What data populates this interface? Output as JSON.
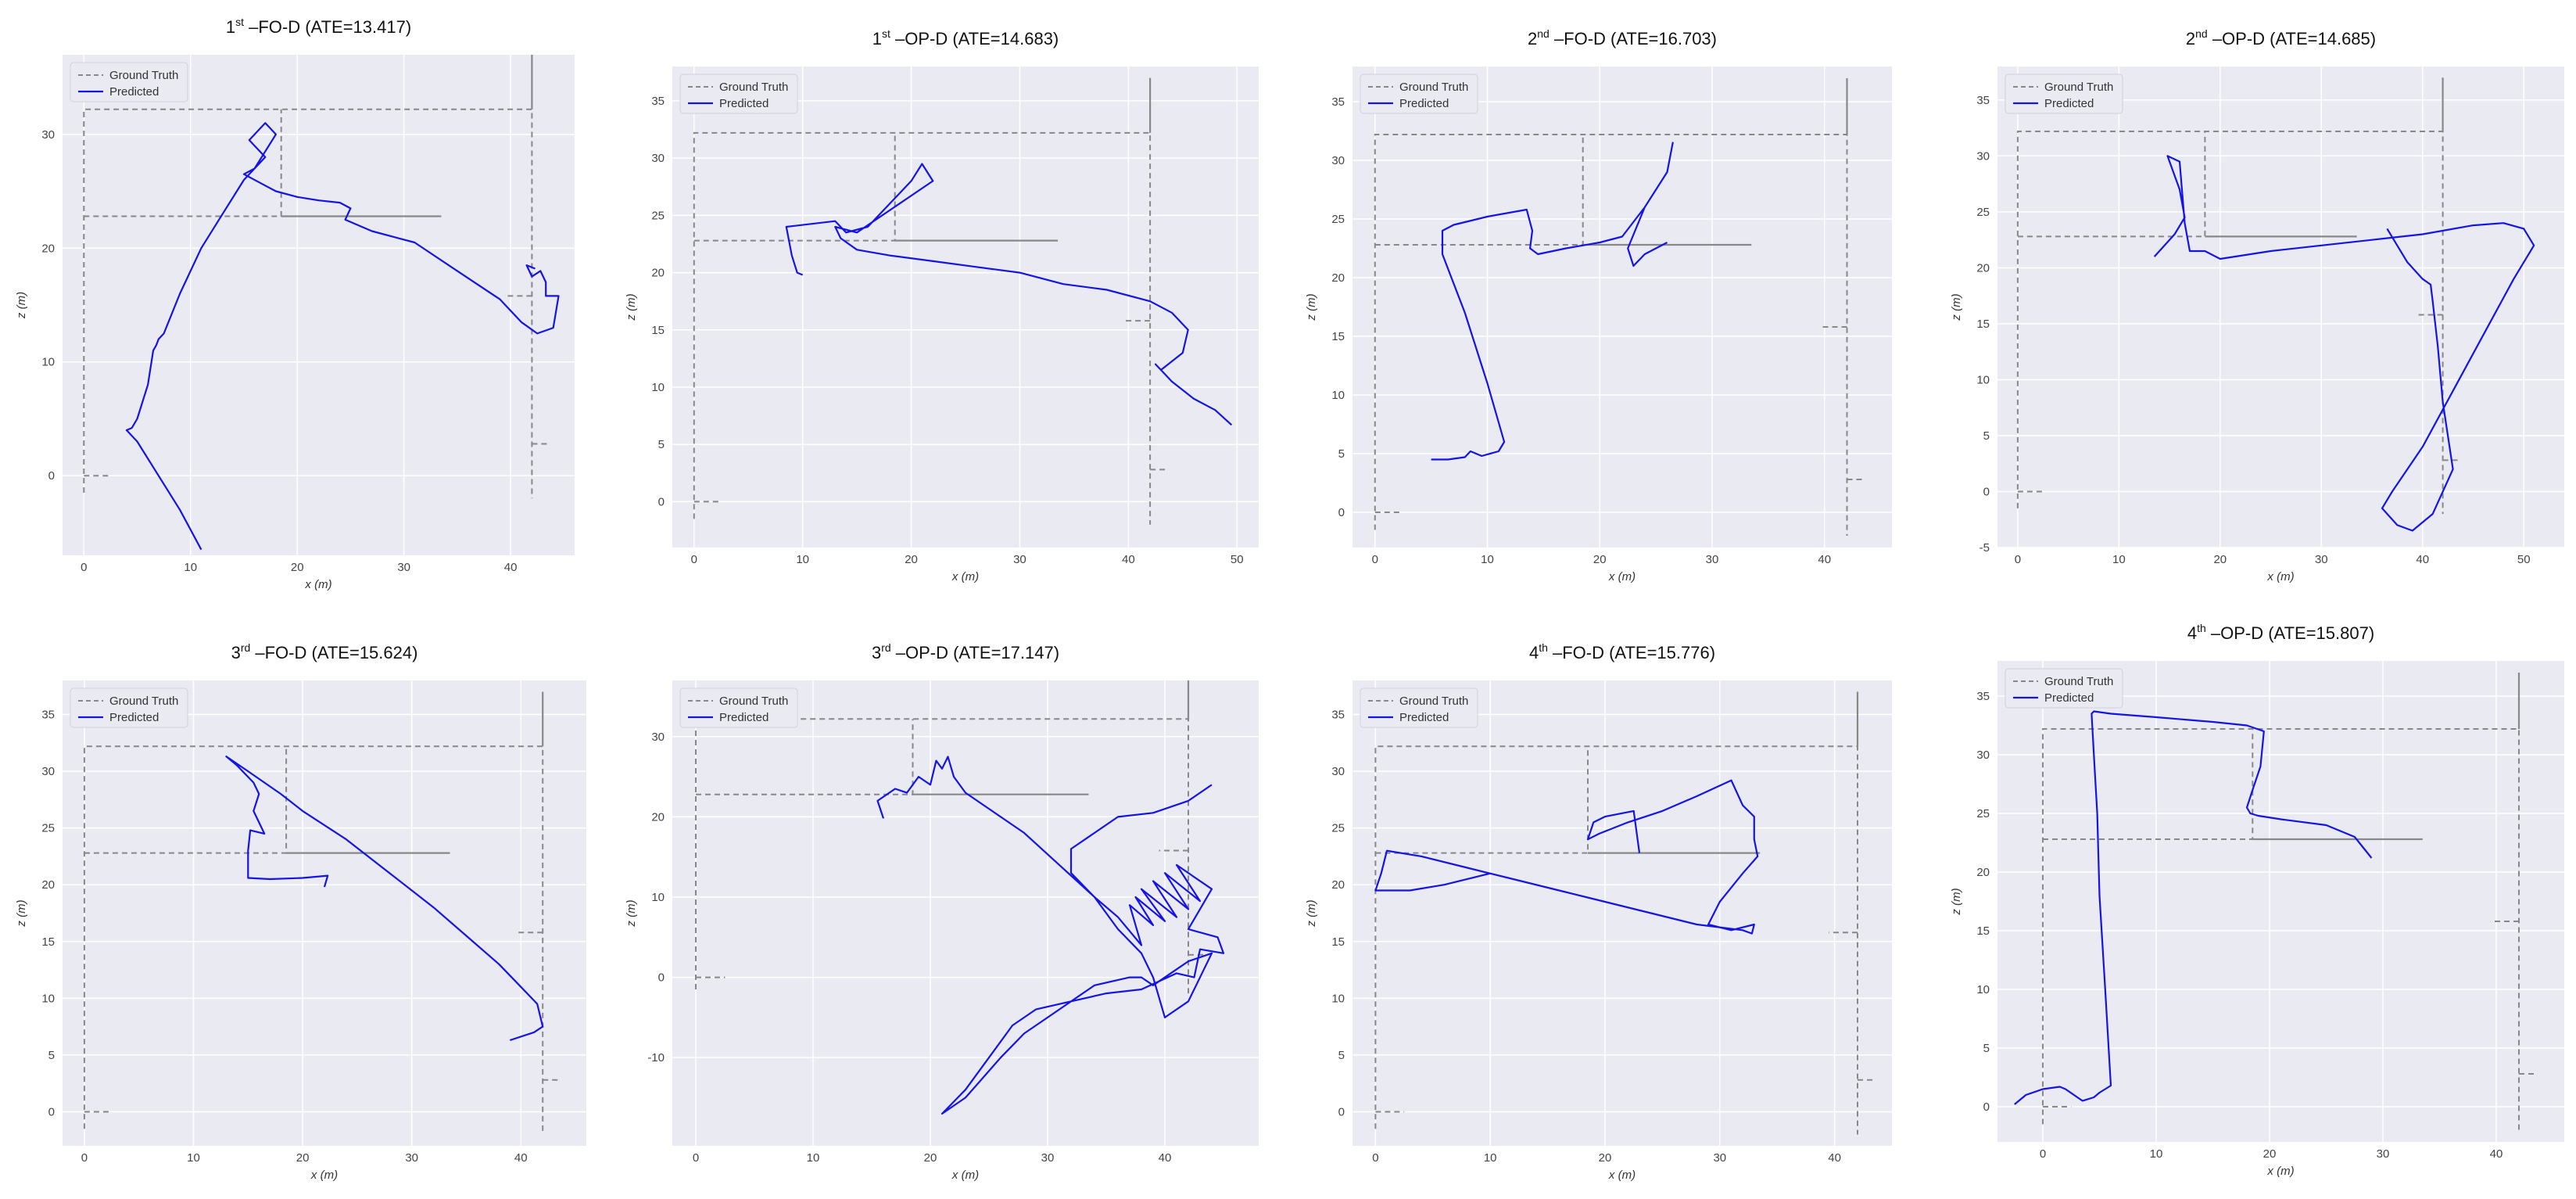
{
  "figure": {
    "legend_gt": "Ground Truth",
    "legend_pred": "Predicted",
    "gt_color": "#888888",
    "pred_color": "#1414e6",
    "bg_color": "#eaeaf2"
  },
  "ground_truth": {
    "dashed_lines": [
      [
        [
          0,
          -1.5
        ],
        [
          0,
          32.2
        ],
        [
          42,
          32.2
        ],
        [
          42,
          -2
        ]
      ],
      [
        [
          0,
          22.8
        ],
        [
          18.5,
          22.8
        ],
        [
          18.5,
          32.2
        ]
      ],
      [
        [
          0,
          0
        ],
        [
          2.5,
          0
        ]
      ],
      [
        [
          42,
          15.8
        ],
        [
          39.5,
          15.8
        ]
      ],
      [
        [
          42,
          2.8
        ],
        [
          43.5,
          2.8
        ]
      ]
    ],
    "solid_lines": [
      [
        [
          18.5,
          22.8
        ],
        [
          33.5,
          22.8
        ]
      ],
      [
        [
          42,
          32.2
        ],
        [
          42,
          37
        ]
      ]
    ]
  },
  "chart_data": [
    {
      "type": "line",
      "title_ord": "1",
      "title_sup": "st",
      "title_rest": " –FO-D (ATE=13.417)",
      "xlabel": "x (m)",
      "ylabel": "z (m)",
      "xlim": [
        -2,
        46
      ],
      "ylim": [
        -7,
        37
      ],
      "xticks": [
        0,
        10,
        20,
        30,
        40
      ],
      "yticks": [
        0,
        10,
        20,
        30
      ],
      "series": [
        {
          "x": [
            11,
            9,
            7,
            5,
            4,
            4.5,
            5,
            6,
            6.5,
            6.8,
            7,
            7.5,
            9,
            11,
            13,
            15,
            17,
            15.5,
            17,
            18,
            16,
            15,
            17,
            18,
            20,
            22,
            24,
            25,
            24.5,
            27,
            31,
            35,
            39,
            41,
            42.5,
            44,
            44.5,
            43.3,
            43.3,
            42.8,
            42,
            41.5,
            42.3
          ],
          "y": [
            -6.5,
            -3,
            0,
            3,
            4,
            4.2,
            5,
            8,
            11,
            11.5,
            12,
            12.5,
            16,
            20,
            23,
            26,
            28,
            29.5,
            31,
            30,
            27,
            26.5,
            25.5,
            25,
            24.5,
            24.2,
            24,
            23.5,
            22.5,
            21.5,
            20.5,
            18,
            15.5,
            13.5,
            12.5,
            13,
            15.8,
            15.8,
            17,
            18,
            17.5,
            18.5,
            18.2
          ]
        }
      ]
    },
    {
      "type": "line",
      "title_ord": "1",
      "title_sup": "st",
      "title_rest": " –OP-D (ATE=14.683)",
      "xlabel": "x (m)",
      "ylabel": "z (m)",
      "xlim": [
        -2,
        52
      ],
      "ylim": [
        -4,
        38
      ],
      "xticks": [
        0,
        10,
        20,
        30,
        40,
        50
      ],
      "yticks": [
        0,
        5,
        10,
        15,
        20,
        25,
        30,
        35
      ],
      "series": [
        {
          "x": [
            10,
            9.5,
            9,
            8.5,
            13,
            14,
            16,
            20,
            21,
            22,
            15,
            13,
            13.5,
            15,
            18,
            22,
            26,
            30,
            34,
            38,
            42,
            44,
            45.5,
            45,
            43,
            42.5,
            44,
            46,
            48,
            49.5
          ],
          "y": [
            19.8,
            20,
            21.5,
            24,
            24.5,
            23.5,
            24,
            28,
            29.5,
            28,
            23.5,
            24,
            23,
            22,
            21.5,
            21,
            20.5,
            20,
            19,
            18.5,
            17.5,
            16.5,
            15,
            13,
            11.5,
            12,
            10.5,
            9,
            8,
            6.7
          ]
        }
      ]
    },
    {
      "type": "line",
      "title_ord": "2",
      "title_sup": "nd",
      "title_rest": " –FO-D (ATE=16.703)",
      "xlabel": "x (m)",
      "ylabel": "z (m)",
      "xlim": [
        -2,
        46
      ],
      "ylim": [
        -3,
        38
      ],
      "xticks": [
        0,
        10,
        20,
        30,
        40
      ],
      "yticks": [
        0,
        5,
        10,
        15,
        20,
        25,
        30,
        35
      ],
      "series": [
        {
          "x": [
            5,
            6.5,
            8,
            8.5,
            9.5,
            11,
            11.5,
            10,
            8,
            6,
            6,
            7,
            10,
            13.5,
            14,
            13.8,
            14.5,
            17,
            20,
            22,
            24,
            26,
            26.5,
            26,
            24,
            22.5,
            23,
            24,
            26
          ],
          "y": [
            4.5,
            4.5,
            4.7,
            5.2,
            4.8,
            5.2,
            6,
            11,
            17,
            22,
            24,
            24.5,
            25.2,
            25.8,
            24,
            22.5,
            22,
            22.5,
            23,
            23.5,
            26,
            29,
            31.5,
            29,
            26,
            22.5,
            21,
            22,
            23
          ]
        }
      ]
    },
    {
      "type": "line",
      "title_ord": "2",
      "title_sup": "nd",
      "title_rest": " –OP-D (ATE=14.685)",
      "xlabel": "x (m)",
      "ylabel": "z (m)",
      "xlim": [
        -2,
        54
      ],
      "ylim": [
        -5,
        38
      ],
      "xticks": [
        0,
        10,
        20,
        30,
        40,
        50
      ],
      "yticks": [
        -5,
        0,
        5,
        10,
        15,
        20,
        25,
        30,
        35
      ],
      "series": [
        {
          "x": [
            13.5,
            15.5,
            16.5,
            16,
            15,
            14.8,
            16,
            16.5,
            17,
            18.5,
            20,
            25,
            30,
            35,
            40,
            45,
            48,
            50,
            51,
            49,
            46,
            43,
            40,
            37,
            36,
            37.5,
            39,
            41,
            43,
            42,
            41.5,
            41,
            40.8,
            40,
            38.5,
            36.5
          ],
          "y": [
            21,
            23,
            24.5,
            27,
            29.5,
            30,
            29.5,
            24,
            21.5,
            21.5,
            20.8,
            21.5,
            22,
            22.5,
            23,
            23.8,
            24,
            23.5,
            22,
            19,
            14,
            9,
            4,
            0,
            -1.5,
            -3,
            -3.5,
            -2,
            2,
            8,
            13,
            17,
            18.5,
            19,
            20.5,
            23.5
          ]
        }
      ]
    },
    {
      "type": "line",
      "title_ord": "3",
      "title_sup": "rd",
      "title_rest": " –FO-D (ATE=15.624)",
      "xlabel": "x (m)",
      "ylabel": "z (m)",
      "xlim": [
        -2,
        46
      ],
      "ylim": [
        -3,
        38
      ],
      "xticks": [
        0,
        10,
        20,
        30,
        40
      ],
      "yticks": [
        0,
        5,
        10,
        15,
        20,
        25,
        30,
        35
      ],
      "series": [
        {
          "x": [
            22,
            22.3,
            20,
            17,
            15,
            15,
            15.2,
            16.5,
            15.5,
            16,
            15.5,
            14,
            13,
            15,
            18,
            20,
            24,
            28,
            32,
            35,
            38,
            40,
            41.5,
            42,
            41.2,
            39
          ],
          "y": [
            19.8,
            20.8,
            20.6,
            20.5,
            20.6,
            23,
            24.8,
            24.5,
            26.5,
            28,
            29,
            30.5,
            31.3,
            30,
            28,
            26.5,
            24,
            21,
            18,
            15.5,
            13,
            11,
            9.5,
            7.5,
            7,
            6.3
          ]
        }
      ]
    },
    {
      "type": "line",
      "title_ord": "3",
      "title_sup": "rd",
      "title_rest": " –OP-D (ATE=17.147)",
      "xlabel": "x (m)",
      "ylabel": "z (m)",
      "xlim": [
        -2,
        48
      ],
      "ylim": [
        -21,
        37
      ],
      "xticks": [
        0,
        10,
        20,
        30,
        40
      ],
      "yticks": [
        -10,
        0,
        10,
        20,
        30
      ],
      "series": [
        {
          "x": [
            16,
            15.5,
            17,
            18,
            19,
            20,
            20.5,
            21,
            21.5,
            22,
            23,
            25,
            28,
            31,
            34,
            36,
            38,
            37,
            39,
            37.5,
            40,
            38,
            41,
            39,
            42,
            40,
            43,
            41,
            44,
            42,
            44.5,
            45,
            43,
            42.5,
            41,
            38,
            35,
            32,
            29,
            27,
            25,
            23,
            21,
            23,
            26,
            28,
            31,
            34,
            37,
            38,
            39,
            41,
            42,
            44,
            42,
            40,
            39,
            38,
            36,
            34,
            32,
            32,
            36,
            39,
            42,
            44
          ],
          "y": [
            19.8,
            22,
            23.5,
            23,
            25,
            24,
            27,
            26,
            27.5,
            25,
            23,
            21,
            18,
            14,
            10,
            7.5,
            4,
            9,
            6.5,
            10,
            7,
            11,
            7.5,
            12,
            8.5,
            13,
            9.5,
            14,
            11,
            6,
            5,
            3,
            3.5,
            0,
            0.5,
            -1.5,
            -2,
            -3,
            -4,
            -6,
            -10,
            -14,
            -17,
            -15,
            -10,
            -7,
            -4,
            -1,
            0,
            0,
            -1,
            1,
            2,
            3,
            -3,
            -5,
            0,
            3,
            6,
            10,
            13,
            16,
            20,
            20.5,
            22,
            24
          ]
        }
      ]
    },
    {
      "type": "line",
      "title_ord": "4",
      "title_sup": "th",
      "title_rest": " –FO-D (ATE=15.776)",
      "xlabel": "x (m)",
      "ylabel": "z (m)",
      "xlim": [
        -2,
        45
      ],
      "ylim": [
        -3,
        38
      ],
      "xticks": [
        0,
        10,
        20,
        30,
        40
      ],
      "yticks": [
        0,
        5,
        10,
        15,
        20,
        25,
        30,
        35
      ],
      "series": [
        {
          "x": [
            23,
            22.5,
            20,
            19,
            18.5,
            19.5,
            22,
            25,
            28,
            31,
            32,
            33,
            33,
            33.3,
            32,
            30,
            29,
            31,
            33,
            32.8,
            32,
            28,
            24,
            20,
            16,
            12,
            8,
            4,
            1,
            0.5,
            0,
            3,
            6,
            10
          ],
          "y": [
            22.8,
            26.5,
            26,
            25.5,
            24,
            24.5,
            25.5,
            26.5,
            27.8,
            29.2,
            27,
            26,
            24,
            22.5,
            21,
            18.5,
            16.5,
            16,
            16.5,
            15.7,
            16,
            16.5,
            17.5,
            18.5,
            19.5,
            20.5,
            21.5,
            22.5,
            23,
            21,
            19.5,
            19.5,
            20,
            21
          ]
        }
      ]
    },
    {
      "type": "line",
      "title_ord": "4",
      "title_sup": "th",
      "title_rest": " –OP-D (ATE=15.807)",
      "xlabel": "x (m)",
      "ylabel": "z (m)",
      "xlim": [
        -4,
        46
      ],
      "ylim": [
        -3,
        38
      ],
      "xticks": [
        0,
        10,
        20,
        30,
        40
      ],
      "yticks": [
        0,
        5,
        10,
        15,
        20,
        25,
        30,
        35
      ],
      "series": [
        {
          "x": [
            -2.5,
            -1.5,
            0,
            1.5,
            2,
            3.5,
            4.5,
            5,
            6,
            5.5,
            5,
            4.8,
            4.5,
            4.3,
            4.5,
            6,
            10,
            15,
            18,
            19.5,
            19.2,
            18.5,
            18,
            18.3,
            19,
            21,
            25,
            27.5,
            29
          ],
          "y": [
            0.2,
            1,
            1.5,
            1.7,
            1.5,
            0.5,
            0.8,
            1.2,
            1.8,
            10,
            18,
            25,
            30,
            33.5,
            33.7,
            33.5,
            33.2,
            32.8,
            32.5,
            32,
            29,
            27,
            25.5,
            25,
            24.8,
            24.5,
            24,
            23,
            21.2
          ]
        }
      ]
    }
  ]
}
